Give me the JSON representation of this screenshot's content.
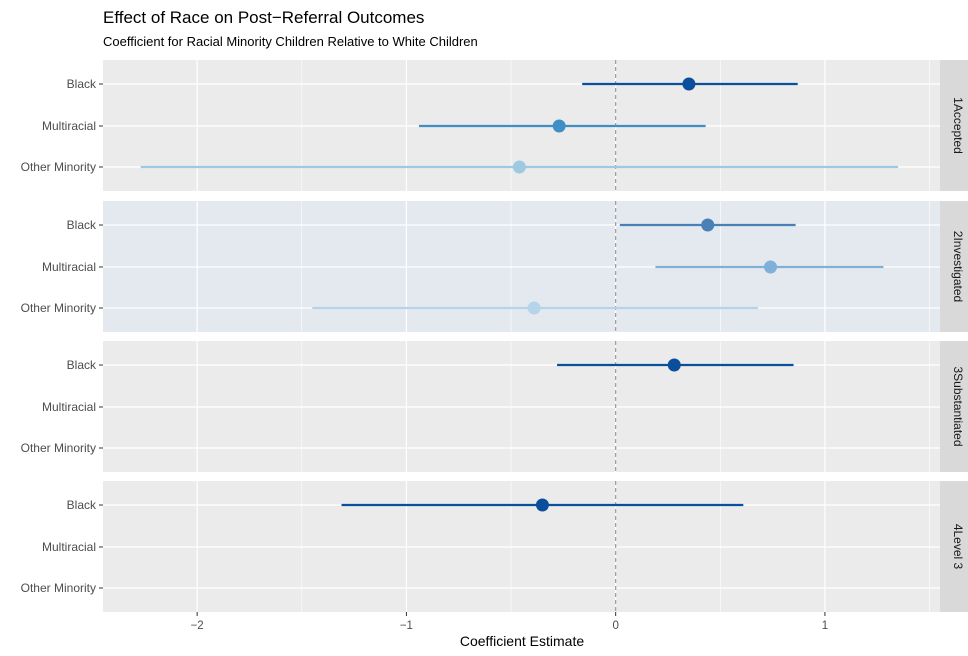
{
  "chart_data": {
    "type": "scatter",
    "title": "Effect of Race on Post−Referral Outcomes",
    "subtitle": "Coefficient for Racial Minority Children Relative to White Children",
    "xlabel": "Coefficient Estimate",
    "ylabel": "",
    "xlim": [
      -2.45,
      1.55
    ],
    "x_ticks": [
      -2,
      -1,
      0,
      1
    ],
    "x_tick_labels": [
      "−2",
      "−1",
      "0",
      "1"
    ],
    "reference_line": 0,
    "categories": [
      "Black",
      "Multiracial",
      "Other Minority"
    ],
    "panels": [
      {
        "label": "1Accepted",
        "highlighted": false,
        "points": [
          {
            "category": "Black",
            "estimate": 0.35,
            "low": -0.16,
            "high": 0.87,
            "color": "#0b4f9c"
          },
          {
            "category": "Multiracial",
            "estimate": -0.27,
            "low": -0.94,
            "high": 0.43,
            "color": "#3f8fc6"
          },
          {
            "category": "Other Minority",
            "estimate": -0.46,
            "low": -2.27,
            "high": 1.35,
            "color": "#9ecae1"
          }
        ]
      },
      {
        "label": "2Investigated",
        "highlighted": true,
        "points": [
          {
            "category": "Black",
            "estimate": 0.44,
            "low": 0.02,
            "high": 0.86,
            "color": "#4a80b8"
          },
          {
            "category": "Multiracial",
            "estimate": 0.74,
            "low": 0.19,
            "high": 1.28,
            "color": "#7fb0d8"
          },
          {
            "category": "Other Minority",
            "estimate": -0.39,
            "low": -1.45,
            "high": 0.68,
            "color": "#b5d4ea"
          }
        ]
      },
      {
        "label": "3Substantiated",
        "highlighted": false,
        "points": [
          {
            "category": "Black",
            "estimate": 0.28,
            "low": -0.28,
            "high": 0.85,
            "color": "#0b4f9c"
          }
        ]
      },
      {
        "label": "4Level 3",
        "highlighted": false,
        "points": [
          {
            "category": "Black",
            "estimate": -0.35,
            "low": -1.31,
            "high": 0.61,
            "color": "#0b4f9c"
          }
        ]
      }
    ],
    "grid": true,
    "legend": "none",
    "colors": {
      "panel_bg": "#ebebeb",
      "panel_bg_highlight": "#e4e9ef",
      "strip_bg": "#d9d9d9",
      "grid": "#ffffff",
      "ref_line": "#999999"
    }
  }
}
